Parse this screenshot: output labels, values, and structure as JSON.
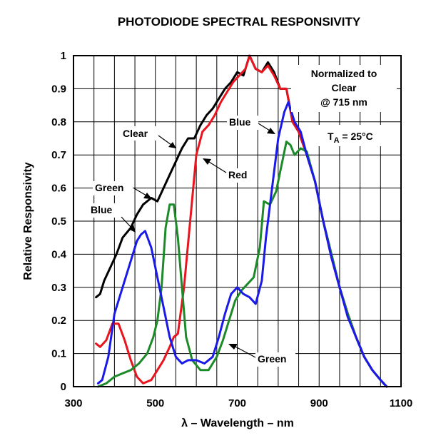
{
  "chart_data": {
    "type": "line",
    "title": "PHOTODIODE SPECTRAL RESPONSIVITY",
    "xlabel": "λ – Wavelength – nm",
    "ylabel": "Relative Responsivity",
    "xlim": [
      300,
      1100
    ],
    "ylim": [
      0,
      1
    ],
    "x_ticks": [
      "300",
      "500",
      "700",
      "900",
      "1100"
    ],
    "y_ticks": [
      "0",
      "0.1",
      "0.2",
      "0.3",
      "0.4",
      "0.5",
      "0.6",
      "0.7",
      "0.8",
      "0.9",
      "1"
    ],
    "grid": true,
    "annotations": {
      "normalized": [
        "Normalized to",
        "Clear",
        "@ 715 nm"
      ],
      "temp_main": "T",
      "temp_sub": "A",
      "temp_rest": " = 25°C"
    },
    "series": [
      {
        "name": "Clear",
        "color": "#000000",
        "label": "Clear",
        "points": [
          [
            355,
            0.27
          ],
          [
            365,
            0.28
          ],
          [
            375,
            0.32
          ],
          [
            390,
            0.36
          ],
          [
            405,
            0.4
          ],
          [
            420,
            0.45
          ],
          [
            440,
            0.48
          ],
          [
            455,
            0.52
          ],
          [
            470,
            0.55
          ],
          [
            490,
            0.57
          ],
          [
            505,
            0.56
          ],
          [
            520,
            0.6
          ],
          [
            535,
            0.64
          ],
          [
            550,
            0.68
          ],
          [
            565,
            0.72
          ],
          [
            580,
            0.75
          ],
          [
            595,
            0.75
          ],
          [
            610,
            0.79
          ],
          [
            625,
            0.82
          ],
          [
            640,
            0.84
          ],
          [
            655,
            0.87
          ],
          [
            670,
            0.9
          ],
          [
            685,
            0.92
          ],
          [
            700,
            0.95
          ],
          [
            715,
            0.94
          ],
          [
            730,
            1.0
          ],
          [
            745,
            0.96
          ],
          [
            760,
            0.95
          ],
          [
            775,
            0.98
          ],
          [
            790,
            0.95
          ],
          [
            805,
            0.9
          ],
          [
            820,
            0.9
          ],
          [
            835,
            0.8
          ],
          [
            850,
            0.77
          ],
          [
            870,
            0.7
          ],
          [
            890,
            0.62
          ],
          [
            910,
            0.5
          ],
          [
            930,
            0.4
          ],
          [
            950,
            0.3
          ],
          [
            970,
            0.22
          ],
          [
            990,
            0.15
          ],
          [
            1010,
            0.09
          ],
          [
            1030,
            0.05
          ],
          [
            1050,
            0.02
          ],
          [
            1065,
            0.0
          ]
        ]
      },
      {
        "name": "Red",
        "color": "#e8141e",
        "label": "Red",
        "points": [
          [
            355,
            0.13
          ],
          [
            365,
            0.12
          ],
          [
            380,
            0.14
          ],
          [
            395,
            0.19
          ],
          [
            410,
            0.19
          ],
          [
            425,
            0.14
          ],
          [
            440,
            0.08
          ],
          [
            455,
            0.03
          ],
          [
            470,
            0.01
          ],
          [
            490,
            0.02
          ],
          [
            505,
            0.05
          ],
          [
            520,
            0.08
          ],
          [
            535,
            0.12
          ],
          [
            545,
            0.15
          ],
          [
            555,
            0.16
          ],
          [
            570,
            0.3
          ],
          [
            585,
            0.5
          ],
          [
            600,
            0.7
          ],
          [
            615,
            0.77
          ],
          [
            630,
            0.79
          ],
          [
            645,
            0.82
          ],
          [
            660,
            0.86
          ],
          [
            675,
            0.89
          ],
          [
            690,
            0.92
          ],
          [
            705,
            0.94
          ],
          [
            720,
            0.96
          ],
          [
            730,
            1.0
          ],
          [
            745,
            0.96
          ],
          [
            760,
            0.95
          ],
          [
            775,
            0.97
          ],
          [
            790,
            0.94
          ],
          [
            805,
            0.9
          ],
          [
            820,
            0.9
          ],
          [
            835,
            0.8
          ],
          [
            850,
            0.77
          ],
          [
            870,
            0.7
          ],
          [
            890,
            0.62
          ],
          [
            910,
            0.5
          ],
          [
            930,
            0.39
          ],
          [
            950,
            0.3
          ],
          [
            970,
            0.22
          ],
          [
            990,
            0.15
          ],
          [
            1010,
            0.09
          ],
          [
            1030,
            0.05
          ],
          [
            1050,
            0.02
          ],
          [
            1065,
            0.0
          ]
        ]
      },
      {
        "name": "Green",
        "color": "#1d8a2a",
        "label": "Green",
        "points": [
          [
            360,
            0.0
          ],
          [
            380,
            0.01
          ],
          [
            400,
            0.03
          ],
          [
            420,
            0.04
          ],
          [
            440,
            0.05
          ],
          [
            460,
            0.07
          ],
          [
            480,
            0.1
          ],
          [
            495,
            0.15
          ],
          [
            505,
            0.2
          ],
          [
            515,
            0.3
          ],
          [
            525,
            0.48
          ],
          [
            535,
            0.55
          ],
          [
            545,
            0.55
          ],
          [
            555,
            0.45
          ],
          [
            565,
            0.3
          ],
          [
            575,
            0.15
          ],
          [
            590,
            0.08
          ],
          [
            610,
            0.05
          ],
          [
            630,
            0.05
          ],
          [
            650,
            0.09
          ],
          [
            665,
            0.14
          ],
          [
            680,
            0.2
          ],
          [
            695,
            0.26
          ],
          [
            710,
            0.29
          ],
          [
            725,
            0.31
          ],
          [
            740,
            0.33
          ],
          [
            755,
            0.42
          ],
          [
            765,
            0.56
          ],
          [
            780,
            0.55
          ],
          [
            795,
            0.59
          ],
          [
            810,
            0.68
          ],
          [
            820,
            0.74
          ],
          [
            830,
            0.73
          ],
          [
            840,
            0.7
          ],
          [
            855,
            0.72
          ],
          [
            870,
            0.71
          ],
          [
            890,
            0.62
          ],
          [
            910,
            0.5
          ],
          [
            930,
            0.4
          ],
          [
            950,
            0.3
          ],
          [
            970,
            0.22
          ],
          [
            990,
            0.15
          ],
          [
            1010,
            0.09
          ],
          [
            1030,
            0.05
          ],
          [
            1050,
            0.02
          ],
          [
            1065,
            0.0
          ]
        ]
      },
      {
        "name": "Blue",
        "color": "#1a1ae8",
        "label": "Blue",
        "points": [
          [
            360,
            0.01
          ],
          [
            370,
            0.02
          ],
          [
            385,
            0.09
          ],
          [
            400,
            0.22
          ],
          [
            420,
            0.3
          ],
          [
            440,
            0.38
          ],
          [
            455,
            0.44
          ],
          [
            465,
            0.46
          ],
          [
            475,
            0.47
          ],
          [
            490,
            0.42
          ],
          [
            505,
            0.33
          ],
          [
            520,
            0.24
          ],
          [
            535,
            0.15
          ],
          [
            550,
            0.09
          ],
          [
            565,
            0.07
          ],
          [
            580,
            0.08
          ],
          [
            600,
            0.08
          ],
          [
            620,
            0.07
          ],
          [
            640,
            0.09
          ],
          [
            655,
            0.15
          ],
          [
            670,
            0.22
          ],
          [
            685,
            0.28
          ],
          [
            700,
            0.3
          ],
          [
            715,
            0.28
          ],
          [
            730,
            0.27
          ],
          [
            745,
            0.25
          ],
          [
            760,
            0.32
          ],
          [
            770,
            0.45
          ],
          [
            785,
            0.6
          ],
          [
            800,
            0.75
          ],
          [
            815,
            0.83
          ],
          [
            825,
            0.86
          ],
          [
            840,
            0.8
          ],
          [
            855,
            0.77
          ],
          [
            870,
            0.7
          ],
          [
            890,
            0.62
          ],
          [
            910,
            0.5
          ],
          [
            930,
            0.39
          ],
          [
            950,
            0.3
          ],
          [
            970,
            0.21
          ],
          [
            990,
            0.15
          ],
          [
            1010,
            0.09
          ],
          [
            1030,
            0.05
          ],
          [
            1050,
            0.02
          ],
          [
            1065,
            0.0
          ]
        ]
      }
    ]
  }
}
